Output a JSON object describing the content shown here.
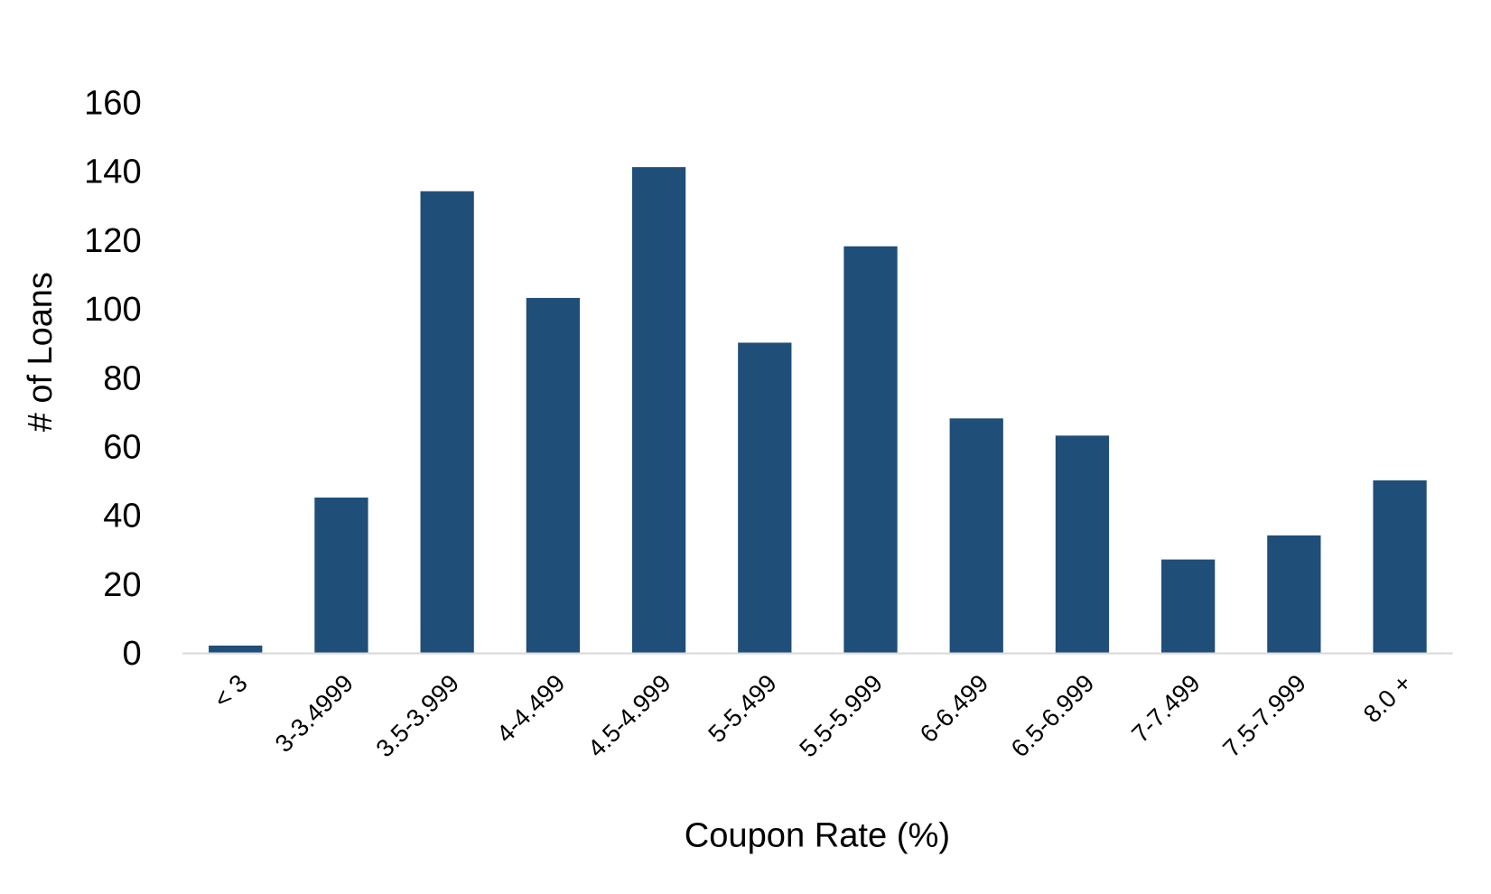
{
  "chart_data": {
    "type": "bar",
    "title": "",
    "xlabel": "Coupon Rate (%)",
    "ylabel": "# of Loans",
    "ylim": [
      0,
      160
    ],
    "yticks": [
      0,
      20,
      40,
      60,
      80,
      100,
      120,
      140,
      160
    ],
    "grid": false,
    "legend": "none",
    "bar_color": "#1f4e79",
    "categories": [
      "< 3",
      "3-3.4999",
      "3.5-3.999",
      "4-4.499",
      "4.5-4.999",
      "5-5.499",
      "5.5-5.999",
      "6-6.499",
      "6.5-6.999",
      "7-7.499",
      "7.5-7.999",
      "8.0 +"
    ],
    "values": [
      2,
      45,
      134,
      103,
      141,
      90,
      118,
      68,
      63,
      27,
      34,
      50
    ]
  }
}
